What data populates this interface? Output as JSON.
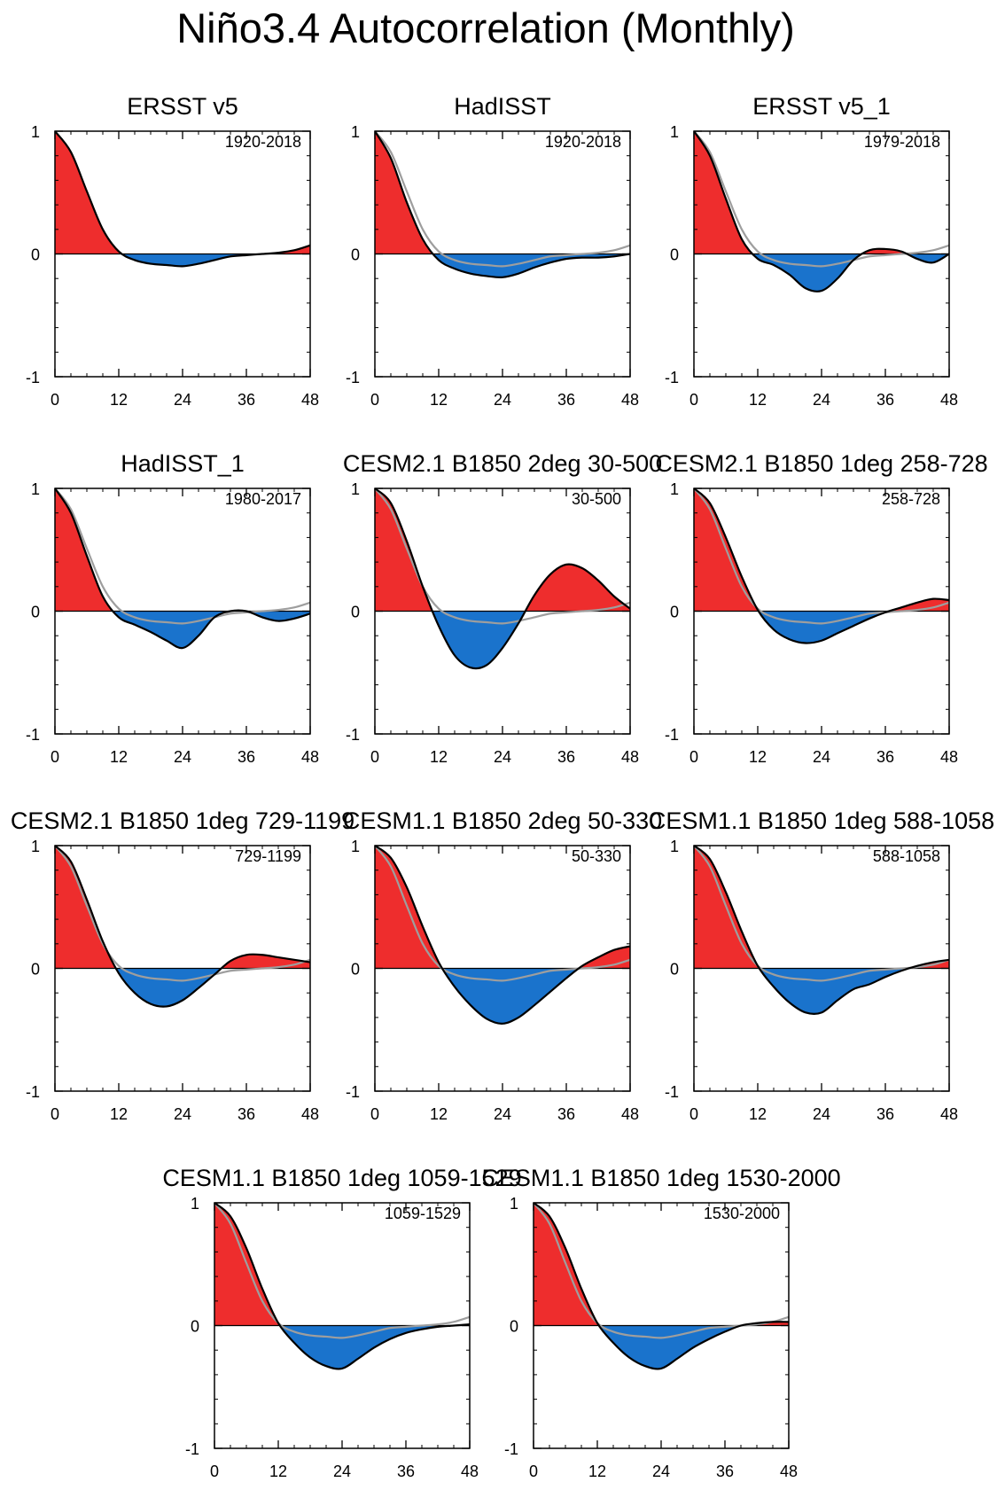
{
  "page_title": "Niño3.4 Autocorrelation (Monthly)",
  "colors": {
    "positive": "#ee2d2d",
    "negative": "#1a73cc",
    "reference": "#9e9e9e",
    "curve": "#000000"
  },
  "chart_data": [
    {
      "type": "area",
      "title": "ERSST v5",
      "period_label": "1920-2018",
      "x": [
        0,
        3,
        6,
        9,
        12,
        15,
        18,
        21,
        24,
        27,
        30,
        33,
        36,
        39,
        42,
        45,
        48
      ],
      "values": [
        1.0,
        0.83,
        0.51,
        0.2,
        0.02,
        -0.05,
        -0.08,
        -0.09,
        -0.1,
        -0.08,
        -0.05,
        -0.02,
        -0.01,
        0.0,
        0.01,
        0.03,
        0.07
      ],
      "reference": null,
      "xticks": [
        0,
        12,
        24,
        36,
        48
      ],
      "yticks": [
        -1,
        0,
        1
      ],
      "xlim": [
        0,
        48
      ],
      "ylim": [
        -1,
        1
      ]
    },
    {
      "type": "area",
      "title": "HadISST",
      "period_label": "1920-2018",
      "x": [
        0,
        3,
        6,
        9,
        12,
        15,
        18,
        21,
        24,
        27,
        30,
        33,
        36,
        39,
        42,
        45,
        48
      ],
      "values": [
        1.0,
        0.78,
        0.42,
        0.12,
        -0.05,
        -0.12,
        -0.16,
        -0.18,
        -0.19,
        -0.16,
        -0.11,
        -0.07,
        -0.04,
        -0.03,
        -0.03,
        -0.02,
        0.0
      ],
      "reference": [
        1.0,
        0.83,
        0.51,
        0.2,
        0.02,
        -0.05,
        -0.08,
        -0.09,
        -0.1,
        -0.08,
        -0.05,
        -0.02,
        -0.01,
        0.0,
        0.01,
        0.03,
        0.07
      ],
      "xticks": [
        0,
        12,
        24,
        36,
        48
      ],
      "yticks": [
        -1,
        0,
        1
      ],
      "xlim": [
        0,
        48
      ],
      "ylim": [
        -1,
        1
      ]
    },
    {
      "type": "area",
      "title": "ERSST v5_1",
      "period_label": "1979-2018",
      "x": [
        0,
        3,
        6,
        9,
        12,
        15,
        18,
        21,
        24,
        27,
        30,
        33,
        36,
        39,
        42,
        45,
        48
      ],
      "values": [
        1.0,
        0.8,
        0.45,
        0.12,
        -0.04,
        -0.09,
        -0.17,
        -0.28,
        -0.3,
        -0.2,
        -0.05,
        0.03,
        0.04,
        0.02,
        -0.04,
        -0.07,
        0.0
      ],
      "reference": [
        1.0,
        0.83,
        0.51,
        0.2,
        0.02,
        -0.05,
        -0.08,
        -0.09,
        -0.1,
        -0.08,
        -0.05,
        -0.02,
        -0.01,
        0.0,
        0.01,
        0.03,
        0.07
      ],
      "xticks": [
        0,
        12,
        24,
        36,
        48
      ],
      "yticks": [
        -1,
        0,
        1
      ],
      "xlim": [
        0,
        48
      ],
      "ylim": [
        -1,
        1
      ]
    },
    {
      "type": "area",
      "title": "HadISST_1",
      "period_label": "1980-2017",
      "x": [
        0,
        3,
        6,
        9,
        12,
        15,
        18,
        21,
        24,
        27,
        30,
        33,
        36,
        39,
        42,
        45,
        48
      ],
      "values": [
        1.0,
        0.8,
        0.45,
        0.12,
        -0.05,
        -0.11,
        -0.17,
        -0.24,
        -0.3,
        -0.2,
        -0.05,
        0.0,
        0.0,
        -0.05,
        -0.08,
        -0.06,
        -0.02
      ],
      "reference": [
        1.0,
        0.83,
        0.51,
        0.2,
        0.02,
        -0.05,
        -0.08,
        -0.09,
        -0.1,
        -0.08,
        -0.05,
        -0.02,
        -0.01,
        0.0,
        0.01,
        0.03,
        0.07
      ],
      "xticks": [
        0,
        12,
        24,
        36,
        48
      ],
      "yticks": [
        -1,
        0,
        1
      ],
      "xlim": [
        0,
        48
      ],
      "ylim": [
        -1,
        1
      ]
    },
    {
      "type": "area",
      "title": "CESM2.1 B1850 2deg 30-500",
      "period_label": "30-500",
      "x": [
        0,
        3,
        6,
        9,
        12,
        15,
        18,
        21,
        24,
        27,
        30,
        33,
        36,
        39,
        42,
        45,
        48
      ],
      "values": [
        1.0,
        0.88,
        0.57,
        0.2,
        -0.12,
        -0.36,
        -0.46,
        -0.44,
        -0.3,
        -0.1,
        0.13,
        0.3,
        0.38,
        0.35,
        0.25,
        0.12,
        0.02
      ],
      "reference": [
        1.0,
        0.83,
        0.51,
        0.2,
        0.02,
        -0.05,
        -0.08,
        -0.09,
        -0.1,
        -0.08,
        -0.05,
        -0.02,
        -0.01,
        0.0,
        0.01,
        0.03,
        0.07
      ],
      "xticks": [
        0,
        12,
        24,
        36,
        48
      ],
      "yticks": [
        -1,
        0,
        1
      ],
      "xlim": [
        0,
        48
      ],
      "ylim": [
        -1,
        1
      ]
    },
    {
      "type": "area",
      "title": "CESM2.1 B1850 1deg 258-728",
      "period_label": "258-728",
      "x": [
        0,
        3,
        6,
        9,
        12,
        15,
        18,
        21,
        24,
        27,
        30,
        33,
        36,
        39,
        42,
        45,
        48
      ],
      "values": [
        1.0,
        0.88,
        0.6,
        0.28,
        0.01,
        -0.15,
        -0.23,
        -0.26,
        -0.24,
        -0.18,
        -0.12,
        -0.06,
        -0.01,
        0.03,
        0.07,
        0.1,
        0.09
      ],
      "reference": [
        1.0,
        0.83,
        0.51,
        0.2,
        0.02,
        -0.05,
        -0.08,
        -0.09,
        -0.1,
        -0.08,
        -0.05,
        -0.02,
        -0.01,
        0.0,
        0.01,
        0.03,
        0.07
      ],
      "xticks": [
        0,
        12,
        24,
        36,
        48
      ],
      "yticks": [
        -1,
        0,
        1
      ],
      "xlim": [
        0,
        48
      ],
      "ylim": [
        -1,
        1
      ]
    },
    {
      "type": "area",
      "title": "CESM2.1 B1850 1deg 729-1199",
      "period_label": "729-1199",
      "x": [
        0,
        3,
        6,
        9,
        12,
        15,
        18,
        21,
        24,
        27,
        30,
        33,
        36,
        39,
        42,
        45,
        48
      ],
      "values": [
        1.0,
        0.87,
        0.56,
        0.22,
        -0.04,
        -0.2,
        -0.29,
        -0.31,
        -0.26,
        -0.16,
        -0.05,
        0.06,
        0.11,
        0.11,
        0.09,
        0.07,
        0.05
      ],
      "reference": [
        1.0,
        0.83,
        0.51,
        0.2,
        0.02,
        -0.05,
        -0.08,
        -0.09,
        -0.1,
        -0.08,
        -0.05,
        -0.02,
        -0.01,
        0.0,
        0.01,
        0.03,
        0.07
      ],
      "xticks": [
        0,
        12,
        24,
        36,
        48
      ],
      "yticks": [
        -1,
        0,
        1
      ],
      "xlim": [
        0,
        48
      ],
      "ylim": [
        -1,
        1
      ]
    },
    {
      "type": "area",
      "title": "CESM1.1 B1850 2deg 50-330",
      "period_label": "50-330",
      "x": [
        0,
        3,
        6,
        9,
        12,
        15,
        18,
        21,
        24,
        27,
        30,
        33,
        36,
        39,
        42,
        45,
        48
      ],
      "values": [
        1.0,
        0.9,
        0.66,
        0.34,
        0.05,
        -0.15,
        -0.3,
        -0.41,
        -0.45,
        -0.4,
        -0.3,
        -0.19,
        -0.08,
        0.02,
        0.09,
        0.15,
        0.18
      ],
      "reference": [
        1.0,
        0.83,
        0.51,
        0.2,
        0.02,
        -0.05,
        -0.08,
        -0.09,
        -0.1,
        -0.08,
        -0.05,
        -0.02,
        -0.01,
        0.0,
        0.01,
        0.03,
        0.07
      ],
      "xticks": [
        0,
        12,
        24,
        36,
        48
      ],
      "yticks": [
        -1,
        0,
        1
      ],
      "xlim": [
        0,
        48
      ],
      "ylim": [
        -1,
        1
      ]
    },
    {
      "type": "area",
      "title": "CESM1.1 B1850 1deg 588-1058",
      "period_label": "588-1058",
      "x": [
        0,
        3,
        6,
        9,
        12,
        15,
        18,
        21,
        24,
        27,
        30,
        33,
        36,
        39,
        42,
        45,
        48
      ],
      "values": [
        1.0,
        0.89,
        0.62,
        0.3,
        0.02,
        -0.15,
        -0.28,
        -0.36,
        -0.36,
        -0.26,
        -0.17,
        -0.13,
        -0.07,
        -0.02,
        0.02,
        0.05,
        0.07
      ],
      "reference": [
        1.0,
        0.83,
        0.51,
        0.2,
        0.02,
        -0.05,
        -0.08,
        -0.09,
        -0.1,
        -0.08,
        -0.05,
        -0.02,
        -0.01,
        0.0,
        0.01,
        0.03,
        0.07
      ],
      "xticks": [
        0,
        12,
        24,
        36,
        48
      ],
      "yticks": [
        -1,
        0,
        1
      ],
      "xlim": [
        0,
        48
      ],
      "ylim": [
        -1,
        1
      ]
    },
    {
      "type": "area",
      "title": "CESM1.1 B1850 1deg 1059-1529",
      "period_label": "1059-1529",
      "x": [
        0,
        3,
        6,
        9,
        12,
        15,
        18,
        21,
        24,
        27,
        30,
        33,
        36,
        39,
        42,
        45,
        48
      ],
      "values": [
        1.0,
        0.89,
        0.63,
        0.3,
        0.02,
        -0.14,
        -0.26,
        -0.33,
        -0.35,
        -0.27,
        -0.18,
        -0.11,
        -0.06,
        -0.03,
        -0.01,
        0.0,
        0.01
      ],
      "reference": [
        1.0,
        0.83,
        0.51,
        0.2,
        0.02,
        -0.05,
        -0.08,
        -0.09,
        -0.1,
        -0.08,
        -0.05,
        -0.02,
        -0.01,
        0.0,
        0.01,
        0.03,
        0.07
      ],
      "xticks": [
        0,
        12,
        24,
        36,
        48
      ],
      "yticks": [
        -1,
        0,
        1
      ],
      "xlim": [
        0,
        48
      ],
      "ylim": [
        -1,
        1
      ]
    },
    {
      "type": "area",
      "title": "CESM1.1 B1850 1deg 1530-2000",
      "period_label": "1530-2000",
      "x": [
        0,
        3,
        6,
        9,
        12,
        15,
        18,
        21,
        24,
        27,
        30,
        33,
        36,
        39,
        42,
        45,
        48
      ],
      "values": [
        1.0,
        0.89,
        0.63,
        0.3,
        0.02,
        -0.14,
        -0.26,
        -0.33,
        -0.35,
        -0.27,
        -0.18,
        -0.11,
        -0.05,
        0.0,
        0.02,
        0.03,
        0.03
      ],
      "reference": [
        1.0,
        0.83,
        0.51,
        0.2,
        0.02,
        -0.05,
        -0.08,
        -0.09,
        -0.1,
        -0.08,
        -0.05,
        -0.02,
        -0.01,
        0.0,
        0.01,
        0.03,
        0.07
      ],
      "xticks": [
        0,
        12,
        24,
        36,
        48
      ],
      "yticks": [
        -1,
        0,
        1
      ],
      "xlim": [
        0,
        48
      ],
      "ylim": [
        -1,
        1
      ]
    }
  ]
}
